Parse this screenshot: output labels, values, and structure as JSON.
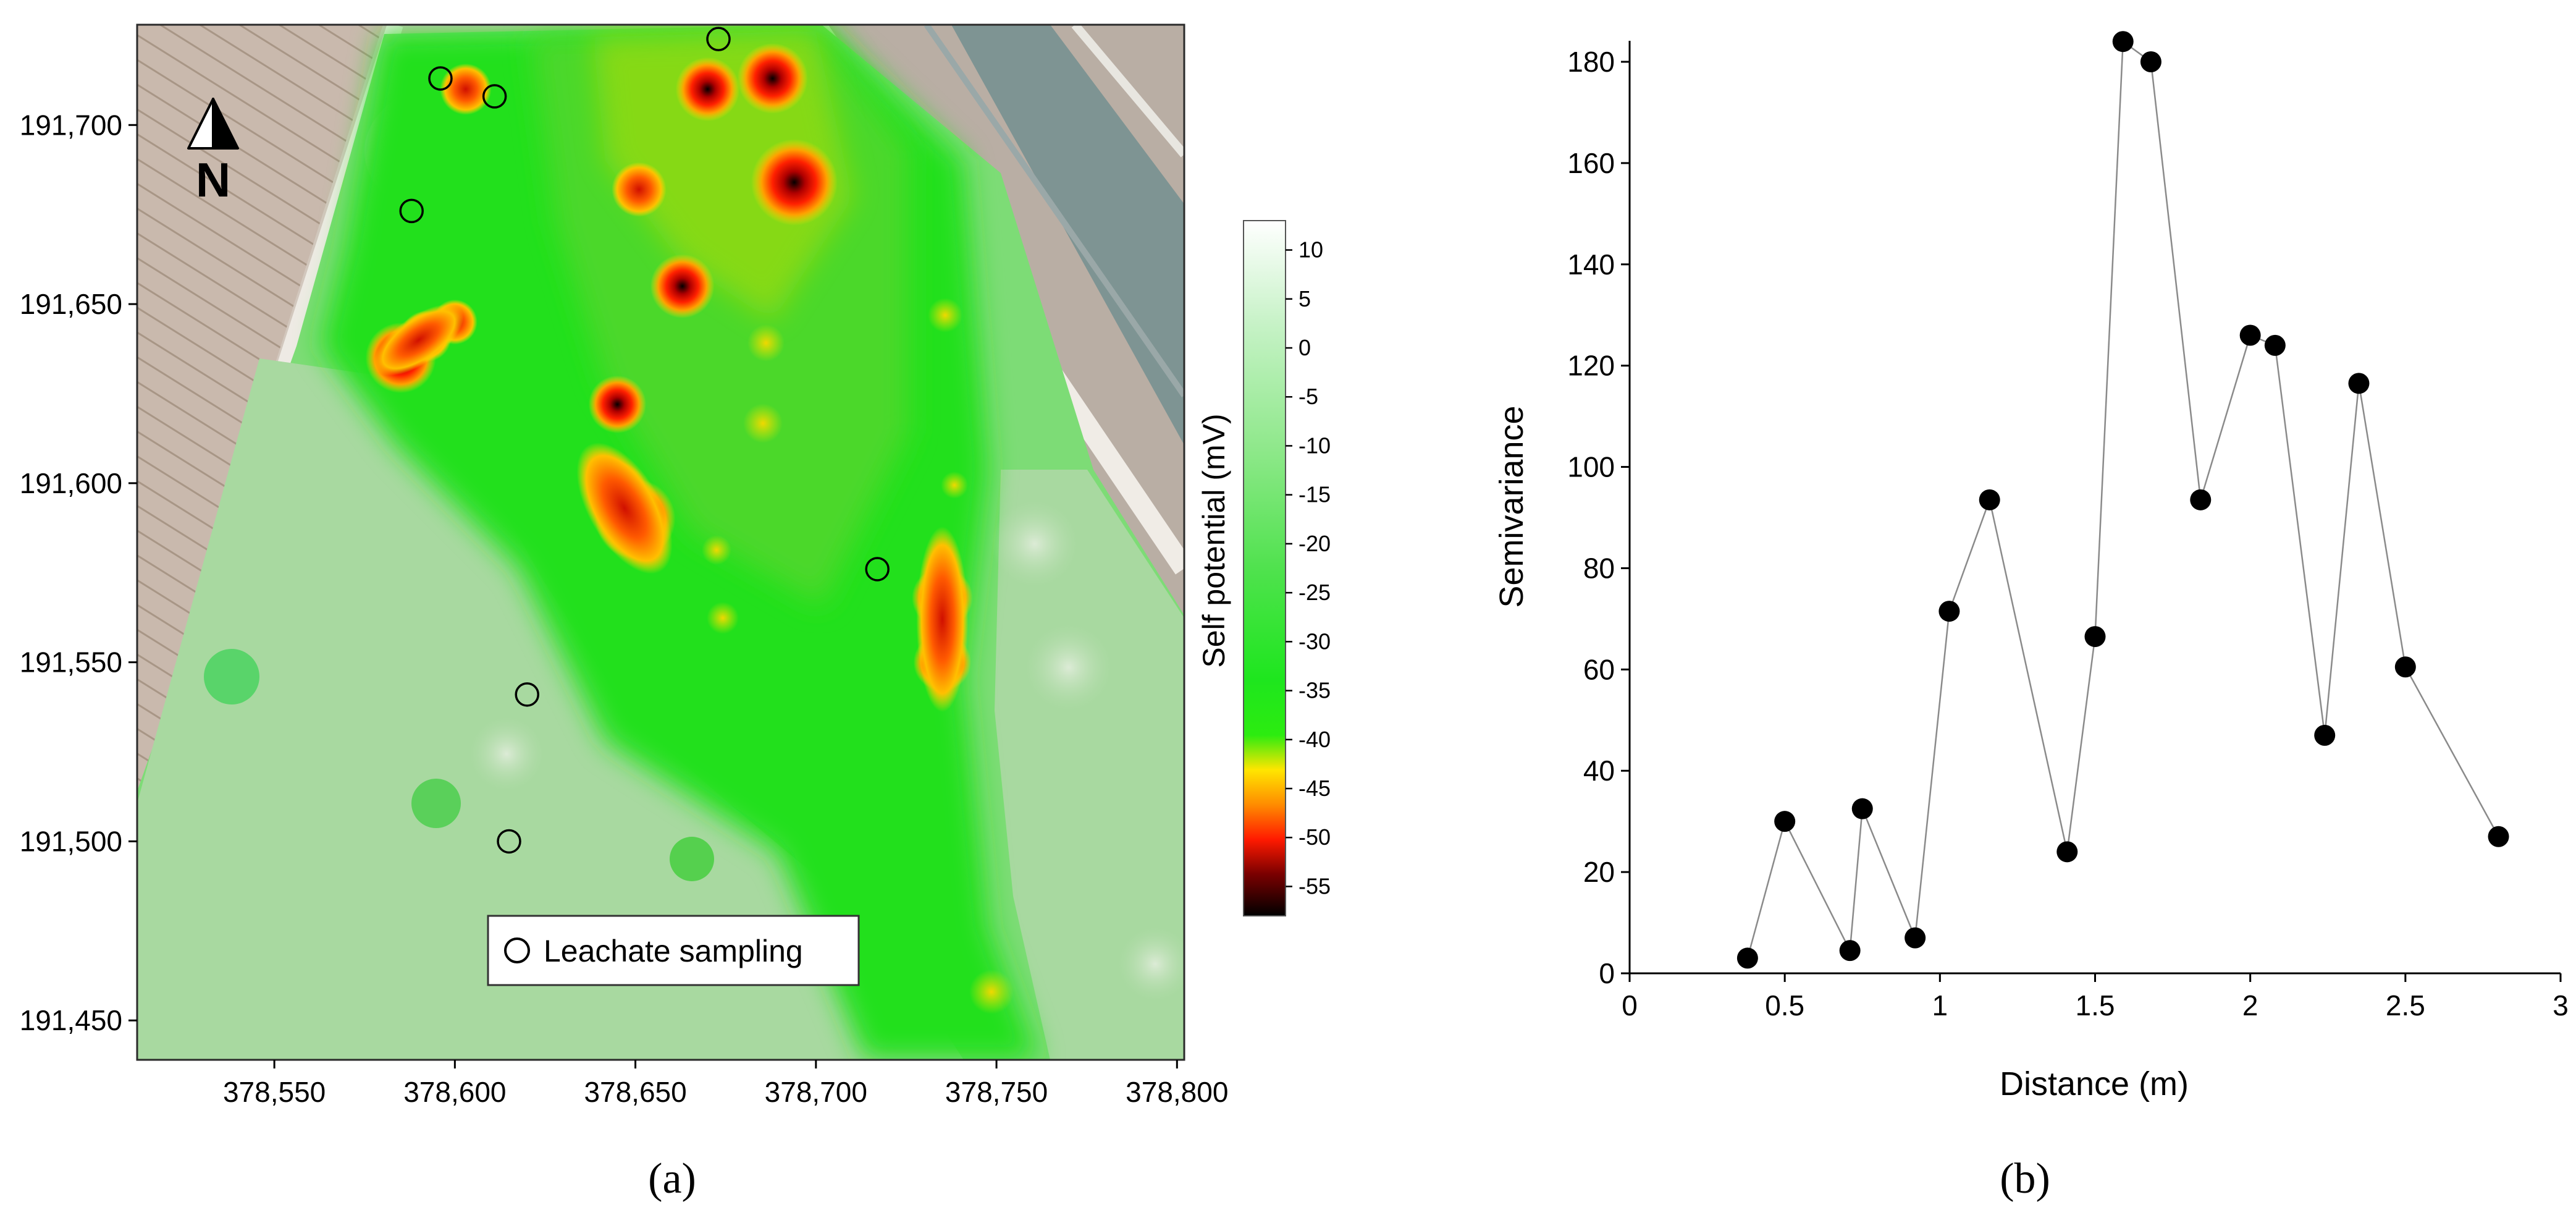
{
  "chart_data": [
    {
      "type": "heatmap",
      "panel_label": "(a)",
      "x_ticks": [
        "378,550",
        "378,600",
        "378,650",
        "378,700",
        "378,750",
        "378,800"
      ],
      "x_tick_values": [
        378550,
        378600,
        378650,
        378700,
        378750,
        378800
      ],
      "xlim": [
        378512,
        378802
      ],
      "y_ticks": [
        "191,700",
        "191,650",
        "191,600",
        "191,550",
        "191,500",
        "191,450"
      ],
      "y_tick_values": [
        191700,
        191650,
        191600,
        191550,
        191500,
        191450
      ],
      "ylim": [
        191439,
        191728
      ],
      "colorbar": {
        "label": "Self potential (mV)",
        "ticks": [
          "10",
          "5",
          "0",
          "-5",
          "-10",
          "-15",
          "-20",
          "-25",
          "-30",
          "-35",
          "-40",
          "-45",
          "-50",
          "-55"
        ],
        "tick_values": [
          10,
          5,
          0,
          -5,
          -10,
          -15,
          -20,
          -25,
          -30,
          -35,
          -40,
          -45,
          -50,
          -55
        ],
        "range": [
          -58,
          13
        ]
      },
      "north_arrow": "N",
      "legend": {
        "label": "Leachate sampling"
      },
      "sampling_points": [
        {
          "x": 378673,
          "y": 191724
        },
        {
          "x": 378596,
          "y": 191713
        },
        {
          "x": 378611,
          "y": 191708
        },
        {
          "x": 378588,
          "y": 191676
        },
        {
          "x": 378717,
          "y": 191576
        },
        {
          "x": 378620,
          "y": 191541
        },
        {
          "x": 378615,
          "y": 191500
        }
      ],
      "anomalies": [
        {
          "x": 378694,
          "y": 191684,
          "sp": -57
        },
        {
          "x": 378688,
          "y": 191713,
          "sp": -52
        },
        {
          "x": 378670,
          "y": 191710,
          "sp": -50
        },
        {
          "x": 378650,
          "y": 191590,
          "sp": -55
        },
        {
          "x": 378645,
          "y": 191598,
          "sp": -48
        },
        {
          "x": 378585,
          "y": 191635,
          "sp": -52
        },
        {
          "x": 378663,
          "y": 191655,
          "sp": -50
        },
        {
          "x": 378645,
          "y": 191622,
          "sp": -48
        },
        {
          "x": 378735,
          "y": 191568,
          "sp": -49
        },
        {
          "x": 378735,
          "y": 191550,
          "sp": -48
        },
        {
          "x": 378651,
          "y": 191682,
          "sp": -47
        },
        {
          "x": 378603,
          "y": 191710,
          "sp": -46
        },
        {
          "x": 378592,
          "y": 191641,
          "sp": -46
        },
        {
          "x": 378600,
          "y": 191645,
          "sp": -44
        }
      ]
    },
    {
      "type": "line",
      "panel_label": "(b)",
      "xlabel": "Distance (m)",
      "ylabel": "Semivariance",
      "xlim": [
        0,
        3
      ],
      "ylim": [
        0,
        185
      ],
      "x_ticks": [
        0,
        0.5,
        1,
        1.5,
        2,
        2.5,
        3
      ],
      "x_tick_labels": [
        "0",
        "0.5",
        "1",
        "1.5",
        "2",
        "2.5",
        "3"
      ],
      "y_ticks": [
        0,
        20,
        40,
        60,
        80,
        100,
        120,
        140,
        160,
        180
      ],
      "x": [
        0.38,
        0.5,
        0.71,
        0.75,
        0.92,
        1.03,
        1.16,
        1.41,
        1.5,
        1.59,
        1.68,
        1.84,
        2.0,
        2.08,
        2.24,
        2.35,
        2.5,
        2.8
      ],
      "y": [
        3,
        30,
        4.5,
        32.5,
        7,
        71.5,
        93.5,
        24,
        66.5,
        184,
        180,
        93.5,
        126,
        124,
        47,
        116.5,
        60.5,
        27
      ]
    }
  ]
}
